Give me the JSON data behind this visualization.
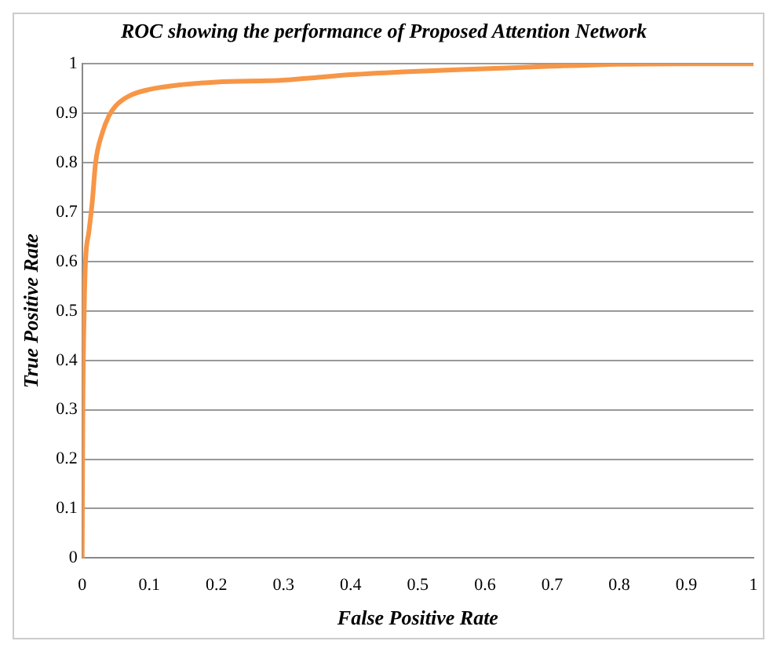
{
  "chart_data": {
    "type": "line",
    "title": "ROC showing the performance of Proposed Attention Network",
    "xlabel": "False Positive Rate",
    "ylabel": "True Positive Rate",
    "x": [
      0,
      0.001,
      0.003,
      0.005,
      0.01,
      0.015,
      0.02,
      0.03,
      0.04,
      0.05,
      0.07,
      0.1,
      0.15,
      0.2,
      0.3,
      0.4,
      0.5,
      0.6,
      0.7,
      0.8,
      0.9,
      1
    ],
    "series": [
      {
        "color": "#f79646",
        "values": [
          0,
          0.3,
          0.5,
          0.6,
          0.66,
          0.72,
          0.8,
          0.86,
          0.895,
          0.915,
          0.935,
          0.948,
          0.958,
          0.963,
          0.967,
          0.978,
          0.985,
          0.99,
          0.995,
          0.999,
          1,
          1
        ]
      }
    ],
    "xlim": [
      0,
      1
    ],
    "ylim": [
      0,
      1
    ],
    "xticks": [
      0,
      0.1,
      0.2,
      0.3,
      0.4,
      0.5,
      0.6,
      0.7,
      0.8,
      0.9,
      1
    ],
    "yticks": [
      0,
      0.1,
      0.2,
      0.3,
      0.4,
      0.5,
      0.6,
      0.7,
      0.8,
      0.9,
      1
    ],
    "grid": "y",
    "legend": false,
    "marker": "none",
    "line_style": "solid"
  }
}
